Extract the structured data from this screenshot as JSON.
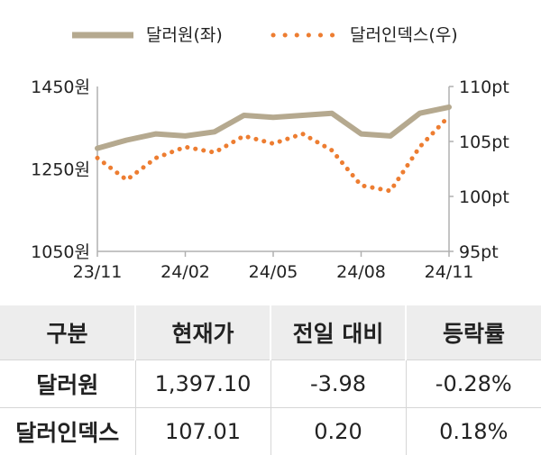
{
  "chart_data": {
    "type": "line",
    "series": [
      {
        "name": "달러원(좌)",
        "axis": "left",
        "style": "solid",
        "color": "#b5a98f",
        "x": [
          "23/11",
          "23/12",
          "24/01",
          "24/02",
          "24/03",
          "24/04",
          "24/05",
          "24/06",
          "24/07",
          "24/08",
          "24/09",
          "24/10",
          "24/11"
        ],
        "values": [
          1300,
          1320,
          1335,
          1330,
          1340,
          1380,
          1375,
          1380,
          1385,
          1335,
          1330,
          1385,
          1400
        ]
      },
      {
        "name": "달러인덱스(우)",
        "axis": "right",
        "style": "dotted",
        "color": "#ed7d31",
        "x": [
          "23/11",
          "23/12",
          "24/01",
          "24/02",
          "24/03",
          "24/04",
          "24/05",
          "24/06",
          "24/07",
          "24/08",
          "24/09",
          "24/10",
          "24/11"
        ],
        "values": [
          103.5,
          101.5,
          103.5,
          104.5,
          104.0,
          105.5,
          104.8,
          105.7,
          104.2,
          101.0,
          100.5,
          104.5,
          107.3
        ]
      }
    ],
    "x_ticks": [
      "23/11",
      "24/02",
      "24/05",
      "24/08",
      "24/11"
    ],
    "y_left": {
      "ticks": [
        "1450원",
        "1250원",
        "1050원"
      ],
      "range": [
        1050,
        1450
      ]
    },
    "y_right": {
      "ticks": [
        "110pt",
        "105pt",
        "100pt",
        "95pt"
      ],
      "range": [
        95,
        110
      ]
    },
    "legend": {
      "position": "top"
    }
  },
  "table": {
    "headers": [
      "구분",
      "현재가",
      "전일 대비",
      "등락률"
    ],
    "rows": [
      [
        "달러원",
        "1,397.10",
        "-3.98",
        "-0.28%"
      ],
      [
        "달러인덱스",
        "107.01",
        "0.20",
        "0.18%"
      ]
    ]
  }
}
